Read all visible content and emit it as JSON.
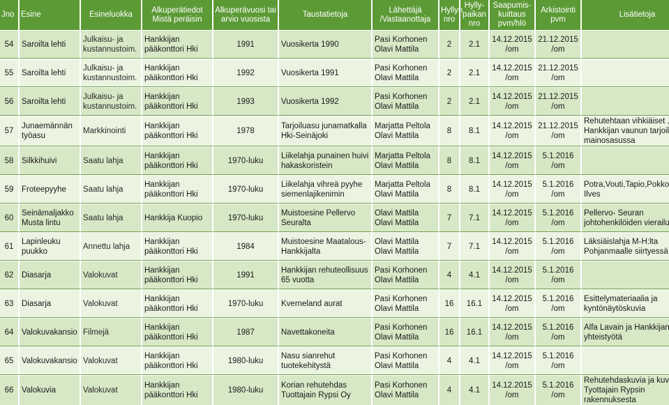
{
  "columns": [
    "Jno",
    "Esine",
    "Esineluokka",
    "Alkuperätiedot Mistä peräisin",
    "Alkuperävuosi tai arvio vuosista",
    "Taustatietoja",
    "Lähettäjä /Vastaanottaja",
    "Hyllyn nro",
    "Hylly-paikan nro",
    "Saapumis-kuittaus pvm/hlö",
    "Arkistointi pvm",
    "Lisätietoja"
  ],
  "rows": [
    {
      "jno": "54",
      "esine": "Saroilta lehti",
      "luokka": "Julkaisu- ja kustannustoim.",
      "origin": "Hankkijan pääkonttori Hki",
      "year": "1991",
      "info": "Vuosikerta 1990",
      "sender": "Pasi Korhonen Olavi Mattila",
      "shelf": "2",
      "place": "2.1",
      "receipt": "14.12.2015 /om",
      "archive": "21.12.2015 /om",
      "notes": ""
    },
    {
      "jno": "55",
      "esine": "Saroilta lehti",
      "luokka": "Julkaisu- ja kustannustoim.",
      "origin": "Hankkijan pääkonttori Hki",
      "year": "1992",
      "info": "Vuosikerta 1991",
      "sender": "Pasi Korhonen Olavi Mattila",
      "shelf": "2",
      "place": "2.1",
      "receipt": "14.12.2015 /om",
      "archive": "21.12.2015 /om",
      "notes": ""
    },
    {
      "jno": "56",
      "esine": "Saroilta lehti",
      "luokka": "Julkaisu- ja kustannustoim.",
      "origin": "Hankkijan pääkonttori Hki",
      "year": "1993",
      "info": "Vuosikerta 1992",
      "sender": "Pasi Korhonen Olavi Mattila",
      "shelf": "2",
      "place": "2.1",
      "receipt": "14.12.2015 /om",
      "archive": "21.12.2015 /om",
      "notes": ""
    },
    {
      "jno": "57",
      "esine": "Junaemännän työasu",
      "luokka": "Markkinointi",
      "origin": "Hankkijan pääkonttori Hki",
      "year": "1978",
      "info": "Tarjoiluasu junamatkalla Hki-Seinäjoki",
      "sender": "Marjatta Peltola Olavi Mattila",
      "shelf": "8",
      "place": "8.1",
      "receipt": "14.12.2015 /om",
      "archive": "21.12.2015 /om",
      "notes": "Rehutehtaan vihkiäiset , Hankkijan vaunun tarjoilijat mainosasussa"
    },
    {
      "jno": "58",
      "esine": "Silkkihuivi",
      "luokka": "Saatu lahja",
      "origin": "Hankkijan pääkonttori Hki",
      "year": "1970-luku",
      "info": "Liikelahja punainen huivi hakaskoristein",
      "sender": "Marjatta Peltola Olavi Mattila",
      "shelf": "8",
      "place": "8.1",
      "receipt": "14.12.2015 /om",
      "archive": "5.1.2016 /om",
      "notes": ""
    },
    {
      "jno": "59",
      "esine": "Froteepyyhe",
      "luokka": "Saatu lahja",
      "origin": "Hankkijan pääkonttori Hki",
      "year": "1970-luku",
      "info": "Liikelahja vihreä pyyhe siemenlajikenimin",
      "sender": "Marjatta Peltola Olavi Mattila",
      "shelf": "8",
      "place": "8.1",
      "receipt": "14.12.2015 /om",
      "archive": "5.1.2016 /om",
      "notes": "Potra,Vouti,Tapio,Pokko,Tammi, Ilves"
    },
    {
      "jno": "60",
      "esine": "Seinämaljakko Musta lintu",
      "luokka": "Saatu lahja",
      "origin": "Hankkija Kuopio",
      "year": "1970-luku",
      "info": "Muistoesine Pellervo Seuralta",
      "sender": "Olavi Mattila Olavi Mattila",
      "shelf": "7",
      "place": "7.1",
      "receipt": "14.12.2015 /om",
      "archive": "5.1.2016 /om",
      "notes": "Pellervo- Seuran johtohenkilöiden vierailu"
    },
    {
      "jno": "61",
      "esine": "Lapinleuku puukko",
      "luokka": "Annettu lahja",
      "origin": "Hankkijan pääkonttori Hki",
      "year": "1984",
      "info": "Muistoesine Maatalous-Hankkijalta",
      "sender": "Olavi Mattila Olavi Mattila",
      "shelf": "7",
      "place": "7.1",
      "receipt": "14.12.2015 /om",
      "archive": "5.1.2016 /om",
      "notes": "Läksiäislahja M-H:lta Pohjanmaalle siirtyessä"
    },
    {
      "jno": "62",
      "esine": "Diasarja",
      "luokka": "Valokuvat",
      "origin": "Hankkijan pääkonttori Hki",
      "year": "1991",
      "info": "Hankkijan rehuteollisuus 65 vuotta",
      "sender": "Pasi Korhonen Olavi Mattila",
      "shelf": "4",
      "place": "4.1",
      "receipt": "14.12.2015 /om",
      "archive": "5.1.2016 /om",
      "notes": ""
    },
    {
      "jno": "63",
      "esine": "Diasarja",
      "luokka": "Valokuvat",
      "origin": "Hankkijan pääkonttori Hki",
      "year": "1970-luku",
      "info": "Kverneland aurat",
      "sender": "Pasi Korhonen Olavi Mattila",
      "shelf": "16",
      "place": "16.1",
      "receipt": "14.12.2015 /om",
      "archive": "5.1.2016 /om",
      "notes": "Esittelymateriaalia ja kyntönäytöskuvia"
    },
    {
      "jno": "64",
      "esine": "Valokuvakansio",
      "luokka": "Filmejä",
      "origin": "Hankkijan pääkonttori Hki",
      "year": "1987",
      "info": "Navettakoneita",
      "sender": "Pasi Korhonen Olavi Mattila",
      "shelf": "16",
      "place": "16.1",
      "receipt": "14.12.2015 /om",
      "archive": "5.1.2016 /om",
      "notes": "Alfa Lavain ja Hankkijan yhteistyötä"
    },
    {
      "jno": "65",
      "esine": "Valokuvakansio",
      "luokka": "Valokuvat",
      "origin": "Hankkijan pääkonttori Hki",
      "year": "1980-luku",
      "info": "Nasu sianrehut tuotekehitystä",
      "sender": "Pasi Korhonen Olavi Mattila",
      "shelf": "4",
      "place": "4.1",
      "receipt": "14.12.2015 /om",
      "archive": "5.1.2016 /om",
      "notes": ""
    },
    {
      "jno": "66",
      "esine": "Valokuvia",
      "luokka": "Valokuvat",
      "origin": "Hankkijan pääkonttori Hki",
      "year": "1980-luku",
      "info": "Korian rehutehdas Tuottajain Rypsi Oy",
      "sender": "Pasi Korhonen Olavi Mattila",
      "shelf": "4",
      "place": "4.1",
      "receipt": "14.12.2015 /om",
      "archive": "5.1.2016 /om",
      "notes": "Rehutehdaskuvia ja kuva Tyottajain Rypsin rakennuksesta"
    }
  ]
}
